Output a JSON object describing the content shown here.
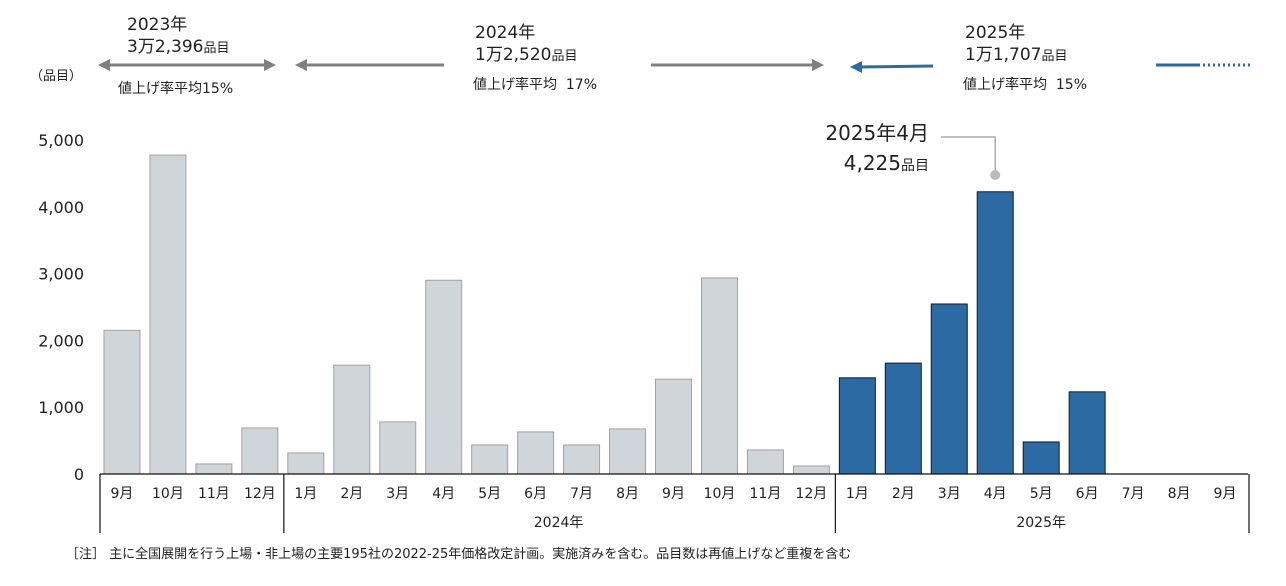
{
  "chart_data": {
    "type": "bar",
    "ylabel": "（品目）",
    "ylim": [
      0,
      5000
    ],
    "yticks": [
      "0",
      "1,000",
      "2,000",
      "3,000",
      "4,000",
      "5,000"
    ],
    "ytick_values": [
      0,
      1000,
      2000,
      3000,
      4000,
      5000
    ],
    "grid": false,
    "categories": [
      "9月",
      "10月",
      "11月",
      "12月",
      "1月",
      "2月",
      "3月",
      "4月",
      "5月",
      "6月",
      "7月",
      "8月",
      "9月",
      "10月",
      "11月",
      "12月",
      "1月",
      "2月",
      "3月",
      "4月",
      "5月",
      "6月",
      "7月",
      "8月",
      "9月"
    ],
    "category_years": [
      "2023",
      "2023",
      "2023",
      "2023",
      "2024",
      "2024",
      "2024",
      "2024",
      "2024",
      "2024",
      "2024",
      "2024",
      "2024",
      "2024",
      "2024",
      "2024",
      "2025",
      "2025",
      "2025",
      "2025",
      "2025",
      "2025",
      "2025",
      "2025",
      "2025"
    ],
    "values": [
      2150,
      4775,
      150,
      690,
      315,
      1630,
      780,
      2900,
      435,
      630,
      435,
      675,
      1420,
      2935,
      360,
      120,
      1440,
      1660,
      2545,
      4225,
      480,
      1230,
      null,
      null,
      null
    ],
    "year_groups": [
      {
        "label": "",
        "count": 4
      },
      {
        "label": "2024年",
        "count": 12
      },
      {
        "label": "2025年",
        "count": 9
      }
    ],
    "colors": {
      "past": "#d0d5d9",
      "past_stroke": "#9ea3a7",
      "current": "#2b6aa3",
      "current_stroke": "#1a1a1a",
      "arrow_gray": "#7f7f7f",
      "arrow_blue": "#2b6aa3"
    },
    "annotation": {
      "line1": "2025年4月",
      "number": "4,225",
      "unit": "品目",
      "target_index": 19
    },
    "period_summaries": [
      {
        "year": "2023年",
        "count": "3万2,396",
        "unit": "品目",
        "rate": "値上げ率平均15%"
      },
      {
        "year": "2024年",
        "count": "1万2,520",
        "unit": "品目",
        "rate": "値上げ率平均  17%"
      },
      {
        "year": "2025年",
        "count": "1万1,707",
        "unit": "品目",
        "rate": "値上げ率平均  15%"
      }
    ],
    "note": "［注］ 主に全国展開を行う上場・非上場の主要195社の2022-25年価格改定計画。実施済みを含む。品目数は再値上げなど重複を含む"
  }
}
